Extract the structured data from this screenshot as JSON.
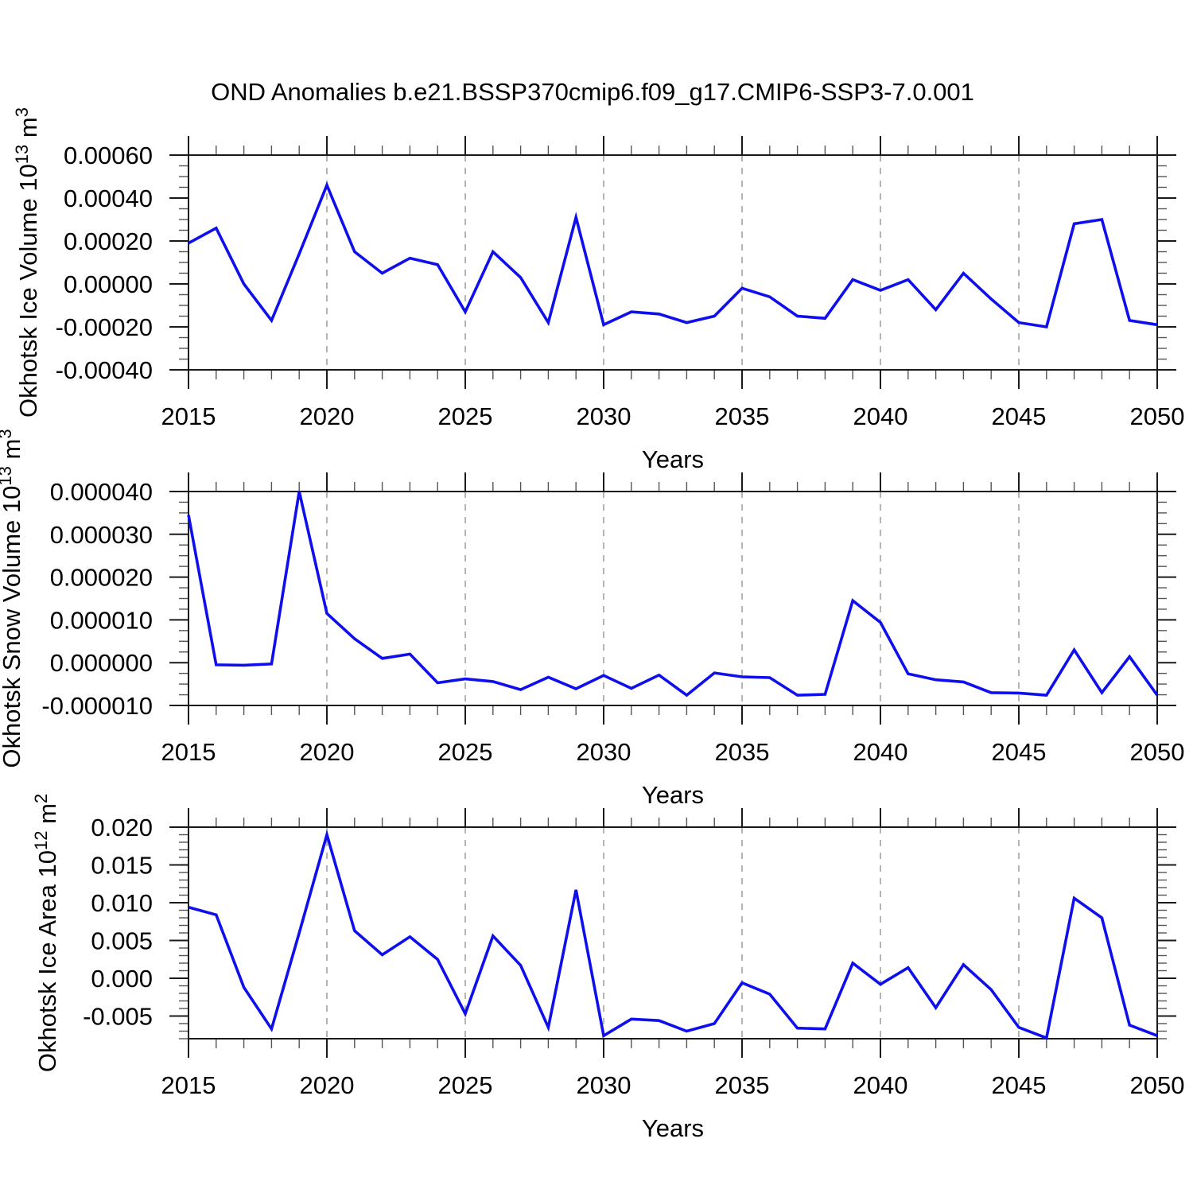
{
  "title": "OND Anomalies b.e21.BSSP370cmip6.f09_g17.CMIP6-SSP3-7.0.001",
  "colors": {
    "line": "#0f0fee",
    "grid": "#b5b5b5",
    "axis": "#1a1a1a",
    "minor_tick": "#555555",
    "background": "#ffffff"
  },
  "x_axis": {
    "label": "Years",
    "range": [
      2015,
      2050
    ],
    "major_ticks": [
      2015,
      2020,
      2025,
      2030,
      2035,
      2040,
      2045,
      2050
    ],
    "tick_labels": [
      "2015",
      "2020",
      "2025",
      "2030",
      "2035",
      "2040",
      "2045",
      "2050"
    ],
    "minor_step": 1,
    "gridline_years": [
      2020,
      2025,
      2030,
      2035,
      2040,
      2045
    ]
  },
  "chart_data": [
    {
      "type": "line",
      "ylabel": "Okhotsk Ice Volume 10^13 m^3",
      "xlabel": "Years",
      "ylim": [
        -0.0004,
        0.0006
      ],
      "yticks": [
        0.0006,
        0.0004,
        0.0002,
        0.0,
        -0.0002,
        -0.0004
      ],
      "ytick_labels": [
        "0.00060",
        "0.00040",
        "0.00020",
        "0.00000",
        "-0.00020",
        "-0.00040"
      ],
      "y_minor_step": 5e-05,
      "grid": true,
      "legend": "none",
      "x": [
        2015,
        2016,
        2017,
        2018,
        2019,
        2020,
        2021,
        2022,
        2023,
        2024,
        2025,
        2026,
        2027,
        2028,
        2029,
        2030,
        2031,
        2032,
        2033,
        2034,
        2035,
        2036,
        2037,
        2038,
        2039,
        2040,
        2041,
        2042,
        2043,
        2044,
        2045,
        2046,
        2047,
        2048,
        2049,
        2050
      ],
      "values": [
        0.00019,
        0.00026,
        0.0,
        -0.00017,
        0.00014,
        0.00046,
        0.00015,
        5e-05,
        0.00012,
        9e-05,
        -0.00013,
        0.00015,
        3e-05,
        -0.00018,
        0.00031,
        -0.00019,
        -0.00013,
        -0.00014,
        -0.00018,
        -0.00015,
        -2e-05,
        -6e-05,
        -0.00015,
        -0.00016,
        2e-05,
        -3e-05,
        2e-05,
        -0.00012,
        5e-05,
        -7e-05,
        -0.00018,
        -0.0002,
        0.00028,
        0.0003,
        -0.00017,
        -0.00019
      ]
    },
    {
      "type": "line",
      "ylabel": "Okhotsk Snow Volume 10^13 m^3",
      "xlabel": "Years",
      "ylim": [
        -1e-05,
        4e-05
      ],
      "yticks": [
        4e-05,
        3e-05,
        2e-05,
        1e-05,
        0.0,
        -1e-05
      ],
      "ytick_labels": [
        "0.000040",
        "0.000030",
        "0.000020",
        "0.000010",
        "0.000000",
        "-0.000010"
      ],
      "y_minor_step": 2.5e-06,
      "grid": true,
      "legend": "none",
      "x": [
        2015,
        2016,
        2017,
        2018,
        2019,
        2020,
        2021,
        2022,
        2023,
        2024,
        2025,
        2026,
        2027,
        2028,
        2029,
        2030,
        2031,
        2032,
        2033,
        2034,
        2035,
        2036,
        2037,
        2038,
        2039,
        2040,
        2041,
        2042,
        2043,
        2044,
        2045,
        2046,
        2047,
        2048,
        2049,
        2050
      ],
      "values": [
        3.45e-05,
        -5e-07,
        -6e-07,
        -3e-07,
        4e-05,
        1.15e-05,
        5.6e-06,
        1e-06,
        2e-06,
        -4.7e-06,
        -3.8e-06,
        -4.4e-06,
        -6.3e-06,
        -3.4e-06,
        -6.1e-06,
        -3e-06,
        -6e-06,
        -2.9e-06,
        -7.6e-06,
        -2.4e-06,
        -3.3e-06,
        -3.5e-06,
        -7.6e-06,
        -7.4e-06,
        1.45e-05,
        9.4e-06,
        -2.6e-06,
        -4e-06,
        -4.5e-06,
        -7e-06,
        -7.1e-06,
        -7.6e-06,
        3e-06,
        -7e-06,
        1.4e-06,
        -7.6e-06
      ]
    },
    {
      "type": "line",
      "ylabel": "Okhotsk Ice Area 10^12 m^2",
      "xlabel": "Years",
      "ylim": [
        -0.008,
        0.02
      ],
      "yticks": [
        0.02,
        0.015,
        0.01,
        0.005,
        0.0,
        -0.005
      ],
      "ytick_labels": [
        "0.020",
        "0.015",
        "0.010",
        "0.005",
        "0.000",
        "-0.005"
      ],
      "y_minor_step": 0.001,
      "grid": true,
      "legend": "none",
      "x": [
        2015,
        2016,
        2017,
        2018,
        2019,
        2020,
        2021,
        2022,
        2023,
        2024,
        2025,
        2026,
        2027,
        2028,
        2029,
        2030,
        2031,
        2032,
        2033,
        2034,
        2035,
        2036,
        2037,
        2038,
        2039,
        2040,
        2041,
        2042,
        2043,
        2044,
        2045,
        2046,
        2047,
        2048,
        2049,
        2050
      ],
      "values": [
        0.0094,
        0.0084,
        -0.0012,
        -0.0067,
        0.006,
        0.019,
        0.0063,
        0.0031,
        0.0055,
        0.0025,
        -0.0047,
        0.0056,
        0.0017,
        -0.0065,
        0.0117,
        -0.0076,
        -0.0054,
        -0.0056,
        -0.007,
        -0.006,
        -0.0006,
        -0.0021,
        -0.0066,
        -0.0067,
        0.002,
        -0.0008,
        0.0014,
        -0.0039,
        0.0018,
        -0.0015,
        -0.0065,
        -0.0079,
        0.0106,
        0.008,
        -0.0062,
        -0.0076
      ]
    }
  ]
}
